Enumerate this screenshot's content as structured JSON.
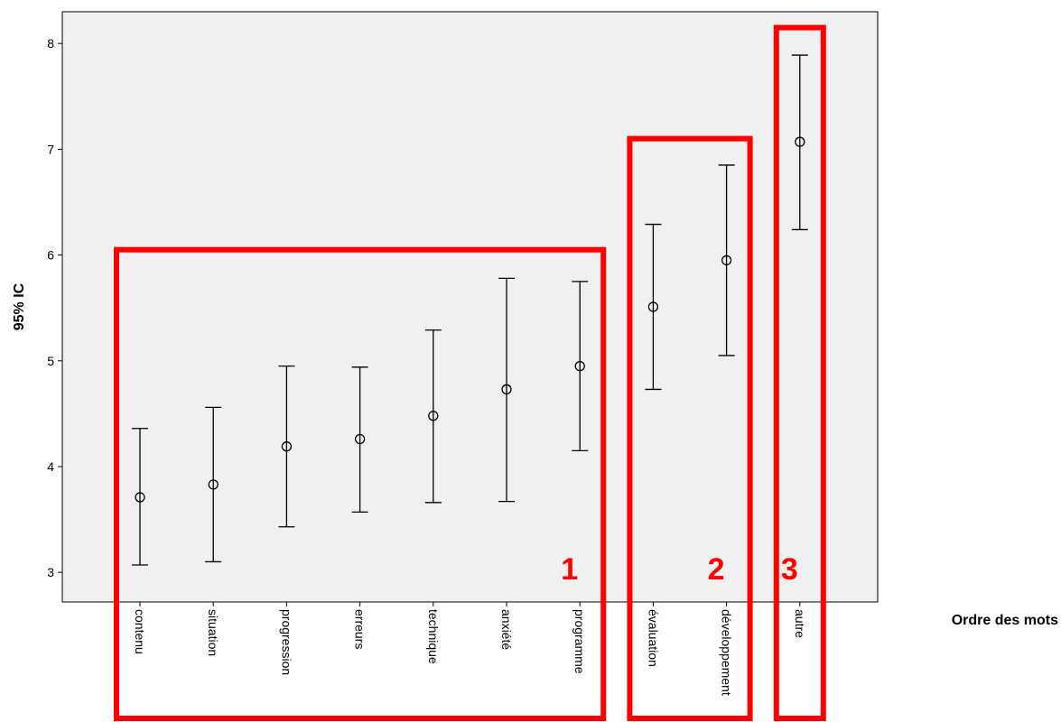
{
  "chart_data": {
    "type": "errorbar",
    "title": "",
    "xlabel": "Ordre des mots",
    "ylabel": "95% IC",
    "ylim": [
      2.72,
      8.3
    ],
    "yticks": [
      3,
      4,
      5,
      6,
      7,
      8
    ],
    "grid": false,
    "legend": "none",
    "colors": {
      "plot_bg": "#f0f0f0",
      "marks": "#000000",
      "highlight": "#ff0000"
    },
    "categories": [
      "contenu",
      "situation",
      "progression",
      "erreurs",
      "technique",
      "anxiété",
      "programme",
      "évaluation",
      "développement",
      "autre"
    ],
    "series": [
      {
        "mean": [
          3.71,
          3.83,
          4.19,
          4.26,
          4.48,
          4.73,
          4.95,
          5.51,
          5.95,
          7.07
        ],
        "lower": [
          3.07,
          3.1,
          3.43,
          3.57,
          3.66,
          3.67,
          4.15,
          4.73,
          5.05,
          6.24
        ],
        "upper": [
          4.36,
          4.56,
          4.95,
          4.94,
          5.29,
          5.78,
          5.75,
          6.29,
          6.85,
          7.89
        ]
      }
    ],
    "annotations": [
      {
        "label": "1",
        "first": 0,
        "last": 6,
        "top_value": 6.05
      },
      {
        "label": "2",
        "first": 7,
        "last": 8,
        "top_value": 7.1
      },
      {
        "label": "3",
        "first": 9,
        "last": 9,
        "top_value": 8.15
      }
    ]
  }
}
